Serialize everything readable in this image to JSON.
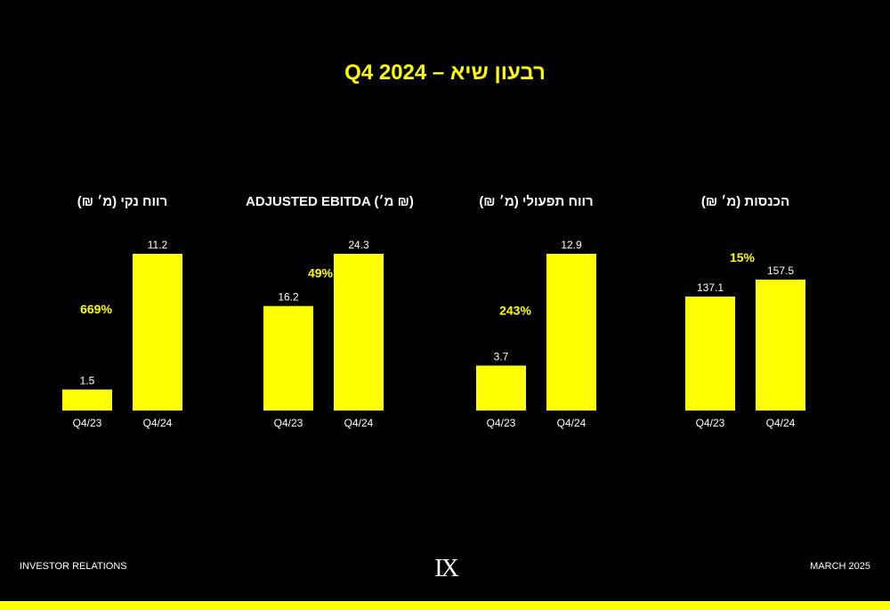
{
  "slide": {
    "title": "Q4 2024 – רבעון שיא",
    "footer_left": "INVESTOR RELATIONS",
    "footer_right": "MARCH 2025",
    "logo_text": "IX"
  },
  "colors": {
    "background": "#000000",
    "bar": "#ffff00",
    "title": "#ffff00",
    "growth_label": "#ffff00",
    "value_label": "#ffffff",
    "footer_bar": "#ffff00"
  },
  "chart_data": [
    {
      "type": "bar",
      "title": "רווח נקי  (מ׳ ₪)",
      "categories": [
        "Q4/23",
        "Q4/24"
      ],
      "values": [
        1.5,
        11.2
      ],
      "value_labels": [
        "1.5",
        "11.2"
      ],
      "growth_label": "669%",
      "xlabel": "",
      "ylabel": ""
    },
    {
      "type": "bar",
      "title": "ADJUSTED EBITDA  (מ׳ ₪)",
      "categories": [
        "Q4/23",
        "Q4/24"
      ],
      "values": [
        16.2,
        24.3
      ],
      "value_labels": [
        "16.2",
        "24.3"
      ],
      "growth_label": "49%",
      "xlabel": "",
      "ylabel": ""
    },
    {
      "type": "bar",
      "title": "רווח תפעולי  (מ׳ ₪)",
      "categories": [
        "Q4/23",
        "Q4/24"
      ],
      "values": [
        3.7,
        12.9
      ],
      "value_labels": [
        "3.7",
        "12.9"
      ],
      "growth_label": "243%",
      "xlabel": "",
      "ylabel": ""
    },
    {
      "type": "bar",
      "title": "הכנסות  (מ׳ ₪)",
      "categories": [
        "Q4/23",
        "Q4/24"
      ],
      "values": [
        137.1,
        157.5
      ],
      "value_labels": [
        "137.1",
        "157.5"
      ],
      "growth_label": "15%",
      "xlabel": "",
      "ylabel": ""
    }
  ]
}
